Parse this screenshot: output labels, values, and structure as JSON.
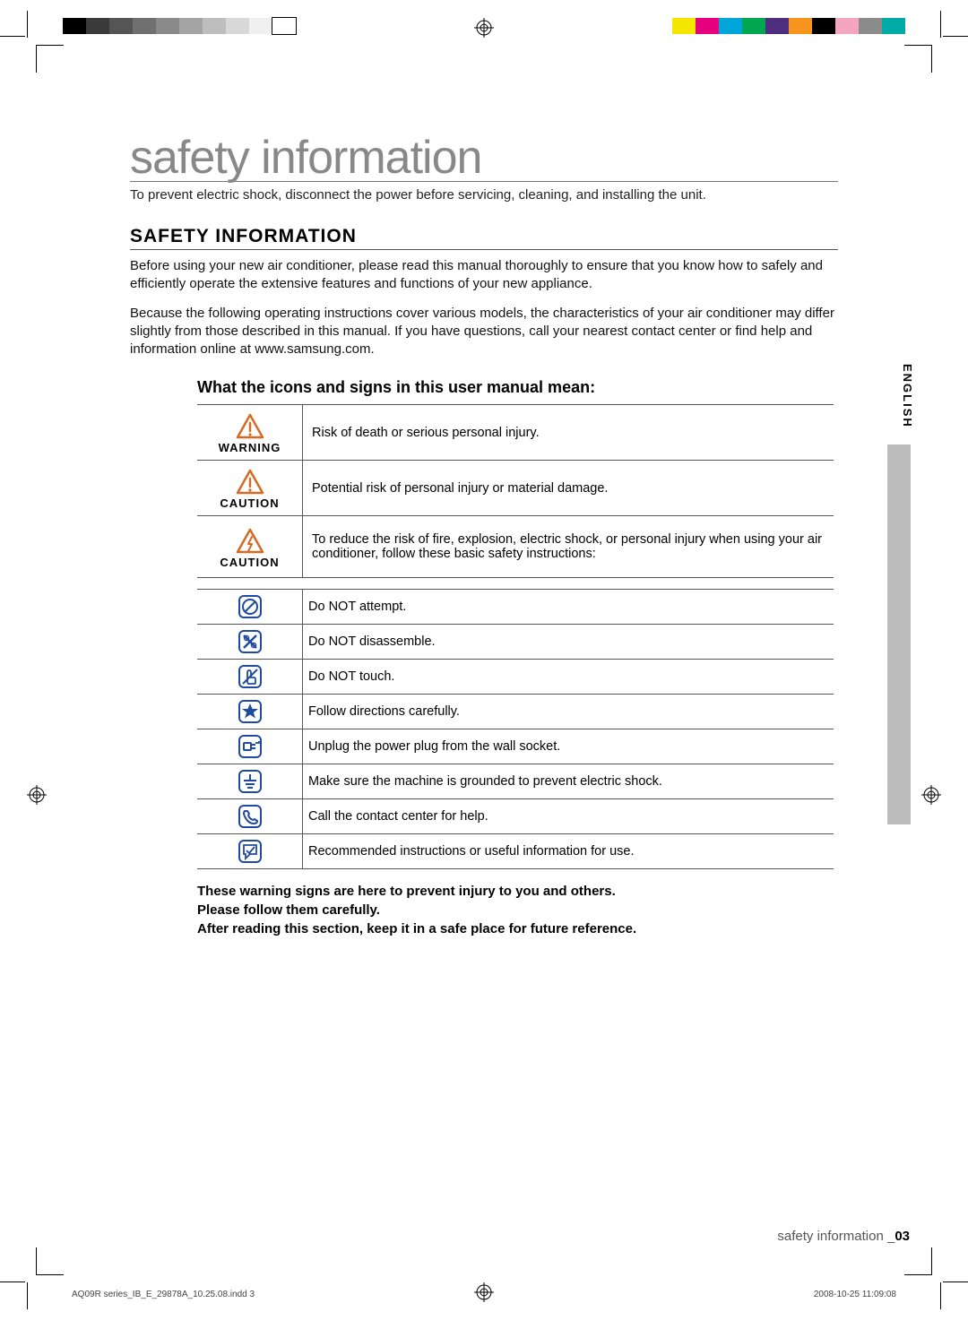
{
  "print": {
    "left_swatches": [
      "#000000",
      "#3a3a3a",
      "#555555",
      "#707070",
      "#8a8a8a",
      "#a4a4a4",
      "#bebebe",
      "#d8d8d8",
      "#f0f0f0",
      "#ffffff"
    ],
    "right_swatches": [
      "#f5e600",
      "#e6007e",
      "#00a5d9",
      "#00a650",
      "#4f2d7f",
      "#f7941d",
      "#000000",
      "#f4a6c0",
      "#8c8c8c",
      "#00aaa6"
    ]
  },
  "page_title": "safety information",
  "page_subtitle": "To prevent electric shock, disconnect the power before servicing, cleaning, and installing the unit.",
  "section_heading": "SAFETY INFORMATION",
  "paragraph1": "Before using your new air conditioner, please read this manual thoroughly to ensure that you know how to safely and efficiently operate the extensive features and functions of your new appliance.",
  "paragraph2": "Because the following operating instructions cover various models, the characteristics of your air conditioner may differ slightly from those described in this manual. If you have questions, call your nearest contact center or find help and information online at www.samsung.com.",
  "language_label": "ENGLISH",
  "table_title": "What the icons and signs in this user manual mean:",
  "big_rows": [
    {
      "label": "WARNING",
      "description": "Risk of death or serious personal injury.",
      "icon_type": "triangle-exclaim",
      "icon_color": "#d66a24"
    },
    {
      "label": "CAUTION",
      "description": "Potential risk of personal injury or material damage.",
      "icon_type": "triangle-exclaim",
      "icon_color": "#d66a24"
    },
    {
      "label": "CAUTION",
      "description": "To reduce the risk of fire, explosion, electric shock, or personal injury when using your air conditioner, follow these basic safety instructions:",
      "icon_type": "triangle-bolt",
      "icon_color": "#d66a24"
    }
  ],
  "small_rows": [
    {
      "icon": "no-attempt",
      "text": "Do NOT attempt."
    },
    {
      "icon": "no-disassemble",
      "text": "Do NOT disassemble."
    },
    {
      "icon": "no-touch",
      "text": "Do NOT touch."
    },
    {
      "icon": "follow",
      "text": "Follow directions carefully."
    },
    {
      "icon": "unplug",
      "text": "Unplug the power plug from the wall socket."
    },
    {
      "icon": "ground",
      "text": "Make sure the machine is grounded to prevent electric shock."
    },
    {
      "icon": "call",
      "text": "Call the contact center for help."
    },
    {
      "icon": "info",
      "text": "Recommended instructions or useful information for use."
    }
  ],
  "notes": [
    "These warning signs are here to prevent injury to you and others.",
    "Please follow them carefully.",
    "After reading this section, keep it in a safe place for future reference."
  ],
  "footer_section": "safety information _",
  "footer_page": "03",
  "slug_left": "AQ09R series_IB_E_29878A_10.25.08.indd   3",
  "slug_right": "2008-10-25   11:09:08"
}
